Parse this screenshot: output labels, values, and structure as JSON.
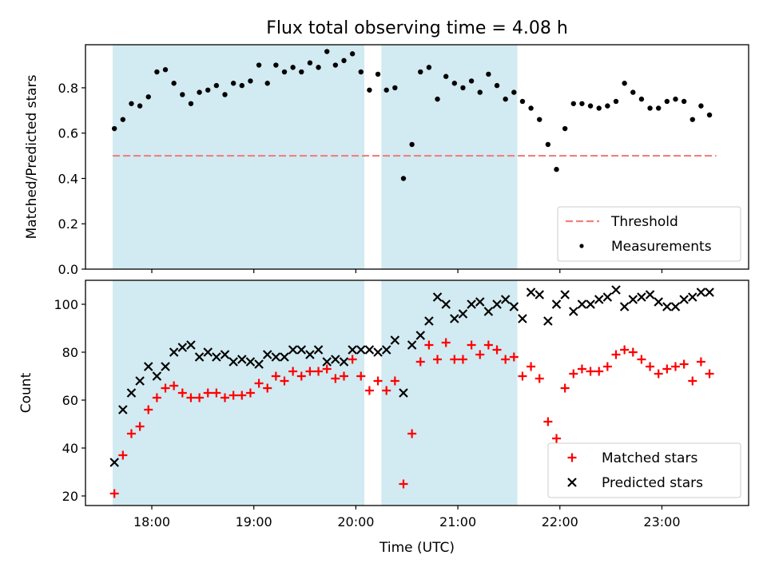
{
  "title": "Flux total observing time = 4.08 h",
  "colors": {
    "shade": "#add8e6",
    "threshold": "#f08080",
    "measurement": "#000000",
    "matched": "#ff0000",
    "predicted": "#000000"
  },
  "chart_data": [
    {
      "type": "scatter",
      "ylabel": "Matched/Predicted stars",
      "ylim": [
        0,
        0.99
      ],
      "yticks": [
        0.0,
        0.2,
        0.4,
        0.6,
        0.8
      ],
      "ytick_labels": [
        "0.0",
        "0.2",
        "0.4",
        "0.6",
        "0.8"
      ],
      "xlim": [
        "17:21",
        "23:51"
      ],
      "shaded_intervals": [
        [
          "17:37",
          "20:05"
        ],
        [
          "20:15",
          "21:35"
        ]
      ],
      "threshold": {
        "name": "Threshold",
        "value": 0.5,
        "x_range": [
          "17:37",
          "23:32"
        ]
      },
      "legend_position": "lower-right",
      "legend": [
        "Threshold",
        "Measurements"
      ],
      "series": [
        {
          "name": "Measurements",
          "x": [
            "17:38",
            "17:43",
            "17:48",
            "17:53",
            "17:58",
            "18:03",
            "18:08",
            "18:13",
            "18:18",
            "18:23",
            "18:28",
            "18:33",
            "18:38",
            "18:43",
            "18:48",
            "18:53",
            "18:58",
            "19:03",
            "19:08",
            "19:13",
            "19:18",
            "19:23",
            "19:28",
            "19:33",
            "19:38",
            "19:43",
            "19:48",
            "19:53",
            "19:58",
            "20:03",
            "20:08",
            "20:13",
            "20:18",
            "20:23",
            "20:28",
            "20:33",
            "20:38",
            "20:43",
            "20:48",
            "20:53",
            "20:58",
            "21:03",
            "21:08",
            "21:13",
            "21:18",
            "21:23",
            "21:28",
            "21:33",
            "21:38",
            "21:43",
            "21:48",
            "21:53",
            "21:58",
            "22:03",
            "22:08",
            "22:13",
            "22:18",
            "22:23",
            "22:28",
            "22:33",
            "22:38",
            "22:43",
            "22:48",
            "22:53",
            "22:58",
            "23:03",
            "23:08",
            "23:13",
            "23:18",
            "23:23",
            "23:28"
          ],
          "values": [
            0.62,
            0.66,
            0.73,
            0.72,
            0.76,
            0.87,
            0.88,
            0.82,
            0.77,
            0.73,
            0.78,
            0.79,
            0.81,
            0.77,
            0.82,
            0.81,
            0.83,
            0.9,
            0.82,
            0.9,
            0.87,
            0.89,
            0.87,
            0.91,
            0.89,
            0.96,
            0.9,
            0.92,
            0.95,
            0.87,
            0.79,
            0.86,
            0.79,
            0.8,
            0.4,
            0.55,
            0.87,
            0.89,
            0.75,
            0.85,
            0.82,
            0.8,
            0.83,
            0.78,
            0.86,
            0.81,
            0.75,
            0.78,
            0.74,
            0.71,
            0.66,
            0.55,
            0.44,
            0.62,
            0.73,
            0.73,
            0.72,
            0.71,
            0.72,
            0.74,
            0.82,
            0.78,
            0.75,
            0.71,
            0.71,
            0.74,
            0.75,
            0.74,
            0.66,
            0.72,
            0.68
          ]
        }
      ]
    },
    {
      "type": "scatter",
      "xlabel": "Time (UTC)",
      "ylabel": "Count",
      "ylim": [
        16,
        110
      ],
      "yticks": [
        20,
        40,
        60,
        80,
        100
      ],
      "ytick_labels": [
        "20",
        "40",
        "60",
        "80",
        "100"
      ],
      "xlim": [
        "17:21",
        "23:51"
      ],
      "xticks": [
        "18:00",
        "19:00",
        "20:00",
        "21:00",
        "22:00",
        "23:00"
      ],
      "shaded_intervals": [
        [
          "17:37",
          "20:05"
        ],
        [
          "20:15",
          "21:35"
        ]
      ],
      "legend_position": "lower-right",
      "legend": [
        "Matched stars",
        "Predicted stars"
      ],
      "series": [
        {
          "name": "Matched stars",
          "x": [
            "17:38",
            "17:43",
            "17:48",
            "17:53",
            "17:58",
            "18:03",
            "18:08",
            "18:13",
            "18:18",
            "18:23",
            "18:28",
            "18:33",
            "18:38",
            "18:43",
            "18:48",
            "18:53",
            "18:58",
            "19:03",
            "19:08",
            "19:13",
            "19:18",
            "19:23",
            "19:28",
            "19:33",
            "19:38",
            "19:43",
            "19:48",
            "19:53",
            "19:58",
            "20:03",
            "20:08",
            "20:13",
            "20:18",
            "20:23",
            "20:28",
            "20:33",
            "20:38",
            "20:43",
            "20:48",
            "20:53",
            "20:58",
            "21:03",
            "21:08",
            "21:13",
            "21:18",
            "21:23",
            "21:28",
            "21:33",
            "21:38",
            "21:43",
            "21:48",
            "21:53",
            "21:58",
            "22:03",
            "22:08",
            "22:13",
            "22:18",
            "22:23",
            "22:28",
            "22:33",
            "22:38",
            "22:43",
            "22:48",
            "22:53",
            "22:58",
            "23:03",
            "23:08",
            "23:13",
            "23:18",
            "23:23",
            "23:28"
          ],
          "values": [
            21,
            37,
            46,
            49,
            56,
            61,
            65,
            66,
            63,
            61,
            61,
            63,
            63,
            61,
            62,
            62,
            63,
            67,
            65,
            70,
            68,
            72,
            70,
            72,
            72,
            73,
            69,
            70,
            77,
            70,
            64,
            68,
            64,
            68,
            25,
            46,
            76,
            83,
            77,
            84,
            77,
            77,
            83,
            79,
            83,
            81,
            77,
            78,
            70,
            74,
            69,
            51,
            44,
            65,
            71,
            73,
            72,
            72,
            74,
            79,
            81,
            80,
            77,
            74,
            71,
            73,
            74,
            75,
            68,
            76,
            71
          ]
        },
        {
          "name": "Predicted stars",
          "x": [
            "17:38",
            "17:43",
            "17:48",
            "17:53",
            "17:58",
            "18:03",
            "18:08",
            "18:13",
            "18:18",
            "18:23",
            "18:28",
            "18:33",
            "18:38",
            "18:43",
            "18:48",
            "18:53",
            "18:58",
            "19:03",
            "19:08",
            "19:13",
            "19:18",
            "19:23",
            "19:28",
            "19:33",
            "19:38",
            "19:43",
            "19:48",
            "19:53",
            "19:58",
            "20:03",
            "20:08",
            "20:13",
            "20:18",
            "20:23",
            "20:28",
            "20:33",
            "20:38",
            "20:43",
            "20:48",
            "20:53",
            "20:58",
            "21:03",
            "21:08",
            "21:13",
            "21:18",
            "21:23",
            "21:28",
            "21:33",
            "21:38",
            "21:43",
            "21:48",
            "21:53",
            "21:58",
            "22:03",
            "22:08",
            "22:13",
            "22:18",
            "22:23",
            "22:28",
            "22:33",
            "22:38",
            "22:43",
            "22:48",
            "22:53",
            "22:58",
            "23:03",
            "23:08",
            "23:13",
            "23:18",
            "23:23",
            "23:28"
          ],
          "values": [
            34,
            56,
            63,
            68,
            74,
            70,
            74,
            80,
            82,
            83,
            78,
            80,
            78,
            79,
            76,
            77,
            76,
            75,
            79,
            78,
            78,
            81,
            81,
            79,
            81,
            76,
            77,
            76,
            81,
            81,
            81,
            80,
            81,
            85,
            63,
            83,
            87,
            93,
            103,
            100,
            94,
            96,
            100,
            101,
            97,
            100,
            102,
            99,
            94,
            105,
            104,
            93,
            100,
            104,
            97,
            100,
            100,
            102,
            103,
            106,
            99,
            102,
            103,
            104,
            101,
            99,
            99,
            102,
            103,
            105,
            105
          ]
        }
      ]
    }
  ]
}
